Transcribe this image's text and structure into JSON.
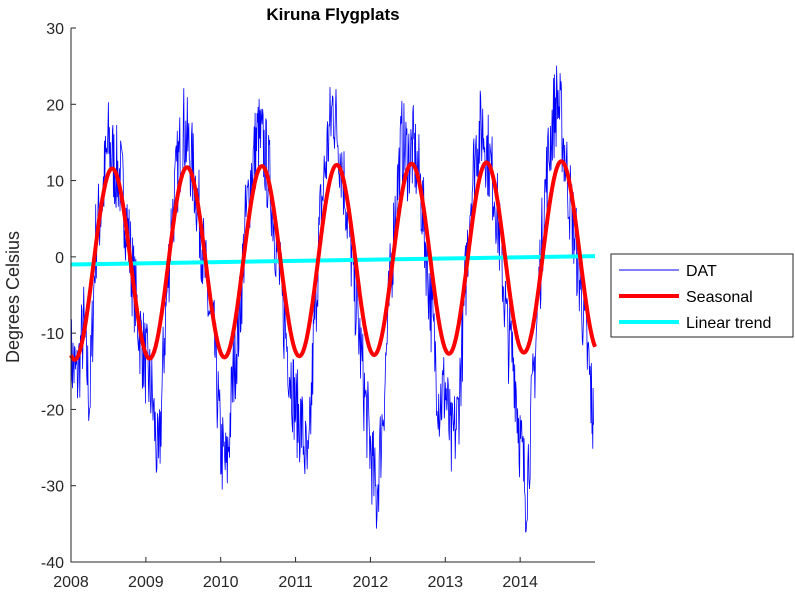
{
  "chart_data": {
    "type": "line",
    "title": "Kiruna Flygplats",
    "xlabel": "",
    "ylabel": "Degrees Celsius",
    "xlim": [
      2008,
      2015
    ],
    "ylim": [
      -40,
      30
    ],
    "xticks": [
      "2008",
      "2009",
      "2010",
      "2011",
      "2012",
      "2013",
      "2014"
    ],
    "yticks": [
      "30",
      "20",
      "10",
      "0",
      "-10",
      "-20",
      "-30",
      "-40"
    ],
    "grid": false,
    "legend_position": "right",
    "series": [
      {
        "name": "DAT",
        "color": "#0000ff",
        "x": [
          2008.0,
          2008.08,
          2008.17,
          2008.25,
          2008.33,
          2008.42,
          2008.5,
          2008.58,
          2008.67,
          2008.75,
          2008.83,
          2008.92,
          2009.0,
          2009.08,
          2009.17,
          2009.25,
          2009.33,
          2009.42,
          2009.5,
          2009.58,
          2009.67,
          2009.75,
          2009.83,
          2009.92,
          2010.0,
          2010.08,
          2010.17,
          2010.25,
          2010.33,
          2010.42,
          2010.5,
          2010.58,
          2010.67,
          2010.75,
          2010.83,
          2010.92,
          2011.0,
          2011.08,
          2011.17,
          2011.25,
          2011.33,
          2011.42,
          2011.5,
          2011.58,
          2011.67,
          2011.75,
          2011.83,
          2011.92,
          2012.0,
          2012.08,
          2012.17,
          2012.25,
          2012.33,
          2012.42,
          2012.5,
          2012.58,
          2012.67,
          2012.75,
          2012.83,
          2012.92,
          2013.0,
          2013.08,
          2013.17,
          2013.25,
          2013.33,
          2013.42,
          2013.5,
          2013.58,
          2013.67,
          2013.75,
          2013.83,
          2013.92,
          2014.0,
          2014.08,
          2014.17,
          2014.25,
          2014.33,
          2014.42,
          2014.5,
          2014.58,
          2014.67,
          2014.75,
          2014.83,
          2014.92,
          2014.98
        ],
        "values": [
          -13,
          -16,
          -9,
          -19,
          2,
          8,
          15,
          12,
          10,
          4,
          -3,
          -10,
          -14,
          -18,
          -28,
          -10,
          3,
          11,
          17,
          14,
          9,
          2,
          -6,
          -12,
          -25,
          -28,
          -15,
          -8,
          4,
          12,
          16,
          14,
          9,
          1,
          -7,
          -14,
          -20,
          -22,
          -29,
          -9,
          5,
          14,
          20,
          15,
          8,
          0,
          -8,
          -18,
          -25,
          -32,
          -20,
          -6,
          6,
          15,
          13,
          14,
          9,
          0,
          -9,
          -19,
          -17,
          -25,
          -21,
          -7,
          7,
          15,
          17,
          13,
          8,
          0,
          -10,
          -14,
          -24,
          -31,
          -18,
          -4,
          8,
          17,
          21,
          15,
          7,
          1,
          -6,
          -15,
          -22
        ]
      },
      {
        "name": "Seasonal",
        "color": "#ff0000",
        "amplitude": 12.5,
        "peak_phase": 0.55
      },
      {
        "name": "Linear trend",
        "color": "#00ffff",
        "x": [
          2008,
          2015
        ],
        "values": [
          -1.0,
          0.1
        ]
      }
    ]
  }
}
